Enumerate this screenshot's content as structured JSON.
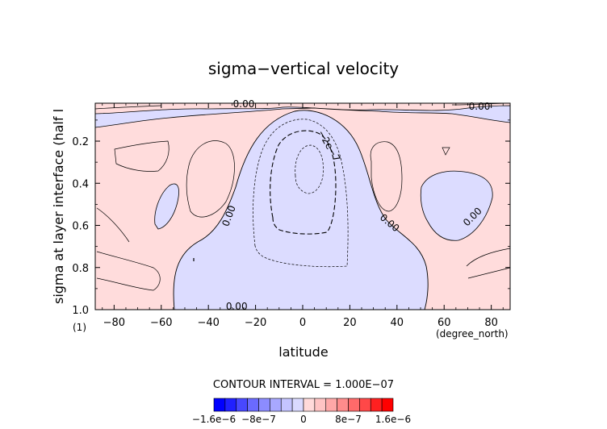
{
  "chart_data": {
    "type": "contour",
    "title": "sigma−vertical velocity",
    "xlabel": "latitude",
    "xunit": "(degree_north)",
    "ylabel": "sigma at layer interface (half l",
    "yunit": "(1)",
    "xlim": [
      -88,
      88
    ],
    "ylim": [
      0.02,
      1.0
    ],
    "y_inverted": true,
    "xticks": [
      -80,
      -60,
      -40,
      -20,
      0,
      20,
      40,
      60,
      80
    ],
    "xtick_labels": [
      "−80",
      "−60",
      "−40",
      "−20",
      "0",
      "20",
      "40",
      "60",
      "80"
    ],
    "yticks": [
      0.2,
      0.4,
      0.6,
      0.8,
      1.0
    ],
    "ytick_labels": [
      "0.2",
      "0.4",
      "0.6",
      "0.8",
      "1.0"
    ],
    "contour_interval_text": "CONTOUR INTERVAL = 1.000E−07",
    "contour_labels": [
      {
        "text": "0.00",
        "x": -25,
        "y": 0.04
      },
      {
        "text": "0.00",
        "x": 75,
        "y": 0.05
      },
      {
        "text": "0.00",
        "x": -30,
        "y": 0.56
      },
      {
        "text": "0.00",
        "x": 36,
        "y": 0.6
      },
      {
        "text": "0.00",
        "x": 73,
        "y": 0.57
      },
      {
        "text": "0.00",
        "x": -28,
        "y": 1.0
      },
      {
        "text": "−2e−7",
        "x": 10,
        "y": 0.23
      }
    ],
    "colorbar": {
      "levels": [
        -1.6e-06,
        -1.4e-06,
        -1.2e-06,
        -1e-06,
        -8e-07,
        -6e-07,
        -4e-07,
        -2e-07,
        0,
        2e-07,
        4e-07,
        6e-07,
        8e-07,
        1e-06,
        1.2e-06,
        1.4e-06,
        1.6e-06
      ],
      "colors": [
        "#0000ff",
        "#2020ff",
        "#4848ff",
        "#6a6aff",
        "#8c8cff",
        "#a8a8ff",
        "#c4c4ff",
        "#dadaff",
        "#ffdada",
        "#ffc4c4",
        "#ffa8a8",
        "#ff8c8c",
        "#ff6a6a",
        "#ff4848",
        "#ff2020",
        "#ff0000"
      ],
      "tick_labels": [
        "−1.6e−6",
        "−8e−7",
        "0",
        "8e−7",
        "1.6e−6"
      ]
    },
    "colors": {
      "positive_fill": "#ffdcdc",
      "negative_fill": "#dcdcff"
    }
  }
}
